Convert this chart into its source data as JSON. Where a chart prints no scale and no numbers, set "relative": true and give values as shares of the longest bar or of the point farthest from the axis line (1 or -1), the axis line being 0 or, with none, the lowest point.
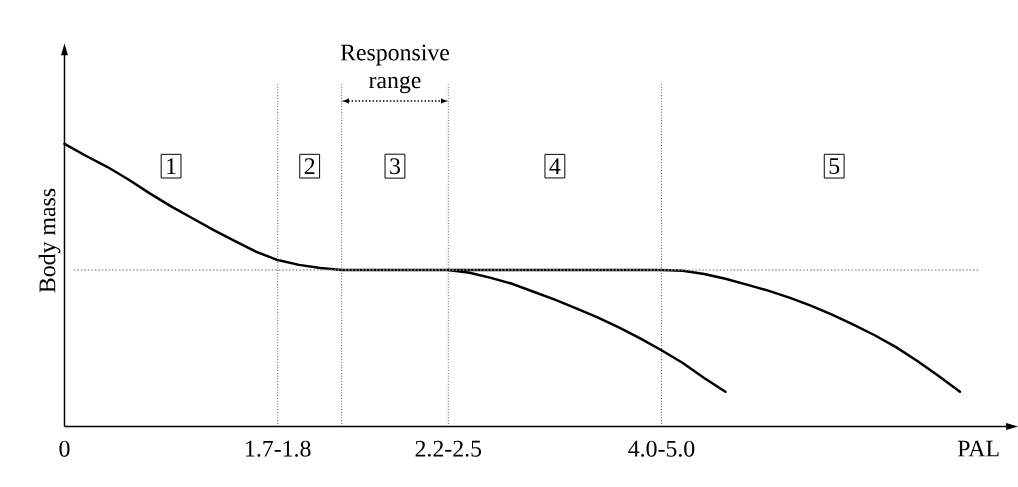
{
  "chart_data": {
    "type": "line",
    "relative": true,
    "xlabel": "PAL",
    "ylabel": "Body mass",
    "categories": [
      "0",
      null,
      null,
      null,
      null,
      null,
      null,
      null,
      null,
      null,
      "1.7-1.8",
      null,
      null,
      null,
      null,
      null,
      null,
      null,
      "2.2-2.5",
      null,
      null,
      null,
      null,
      null,
      null,
      null,
      null,
      null,
      "4.0-5.0",
      null,
      null,
      null,
      null,
      null,
      null,
      null,
      null,
      null,
      null,
      null,
      null,
      null,
      null,
      null,
      null
    ],
    "series": [
      {
        "color": "#000000",
        "values": [
          1.0,
          0.958,
          0.919,
          0.874,
          0.825,
          0.779,
          0.737,
          0.695,
          0.656,
          0.618,
          0.589,
          0.572,
          0.561,
          0.554,
          0.554,
          0.554,
          0.554,
          0.554,
          0.554,
          0.554,
          0.554,
          0.554,
          0.554,
          0.554,
          0.554,
          0.554,
          0.554,
          0.554,
          0.554,
          0.551,
          0.54,
          0.523,
          0.502,
          0.481,
          0.456,
          0.428,
          0.396,
          0.361,
          0.323,
          0.281,
          0.232,
          0.179,
          0.123,
          null,
          null
        ]
      },
      {
        "color": "#000000",
        "values": [
          null,
          null,
          null,
          null,
          null,
          null,
          null,
          null,
          null,
          null,
          null,
          null,
          null,
          null,
          null,
          null,
          null,
          null,
          0.554,
          0.544,
          0.526,
          0.505,
          0.477,
          0.449,
          0.418,
          0.386,
          0.351,
          0.312,
          0.27,
          0.225,
          0.172,
          0.123,
          null,
          null,
          null,
          null,
          null,
          null,
          null,
          null,
          null,
          null,
          null,
          null,
          null
        ]
      }
    ],
    "ref_lines": [
      {
        "axis": "y",
        "value": 0.554,
        "line_style": "dotted",
        "color": "#999999"
      }
    ],
    "annotations": [
      "Responsive range",
      "1",
      "2",
      "3",
      "4",
      "5"
    ],
    "grid": "x",
    "marker": "none",
    "line_style": "solid"
  }
}
